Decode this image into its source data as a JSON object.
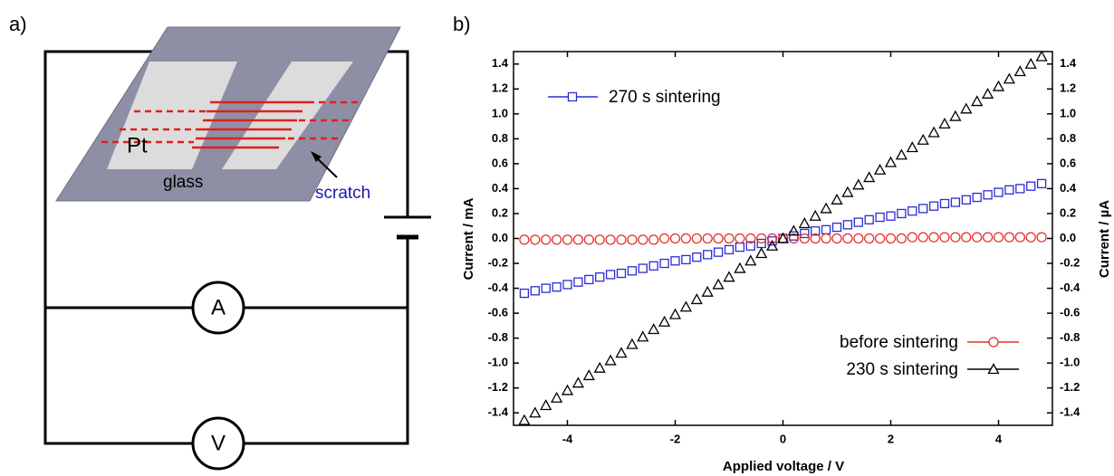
{
  "panel_a": {
    "label": "a)",
    "electrode": "Pt",
    "substrate": "glass",
    "defect": "scratch",
    "ammeter": "A",
    "voltmeter": "V"
  },
  "chart_data": {
    "type": "scatter",
    "panel_label": "b)",
    "x_label": "Applied voltage / V",
    "y_label": "Current / mA",
    "y2_label": "Current / µA",
    "xlim": [
      -5,
      5
    ],
    "xticks": [
      -4,
      -2,
      0,
      2,
      4
    ],
    "ylim": [
      -1.5,
      1.5
    ],
    "yticks": [
      -1.4,
      -1.2,
      {
        "value": -1,
        "label": "-1.0"
      },
      -0.8,
      -0.6,
      -0.4,
      -0.2,
      {
        "value": 0,
        "label": "0.0"
      },
      0.2,
      0.4,
      0.6,
      0.8,
      {
        "value": 1,
        "label": "1.0"
      },
      1.2,
      1.4
    ],
    "y2lim": [
      -1.5,
      1.5
    ],
    "y2ticks": [
      -1.4,
      -1.2,
      {
        "value": -1,
        "label": "-1.0"
      },
      -0.8,
      -0.6,
      -0.4,
      -0.2,
      {
        "value": 0,
        "label": "0.0"
      },
      0.2,
      0.4,
      0.6,
      0.8,
      {
        "value": 1,
        "label": "1.0"
      },
      1.2,
      1.4
    ],
    "x": [
      -4.8,
      -4.6,
      -4.4,
      -4.2,
      -4.0,
      -3.8,
      -3.6,
      -3.4,
      -3.2,
      -3.0,
      -2.8,
      -2.6,
      -2.4,
      -2.2,
      -2.0,
      -1.8,
      -1.6,
      -1.4,
      -1.2,
      -1.0,
      -0.8,
      -0.6,
      -0.4,
      -0.2,
      0,
      0.2,
      0.4,
      0.6,
      0.8,
      1.0,
      1.2,
      1.4,
      1.6,
      1.8,
      2.0,
      2.2,
      2.4,
      2.6,
      2.8,
      3.0,
      3.2,
      3.4,
      3.6,
      3.8,
      4.0,
      4.2,
      4.4,
      4.6,
      4.8
    ],
    "series": [
      {
        "name": "270 s sintering",
        "color": "#2b2bd4",
        "marker": "square",
        "legend": "top-left",
        "values": [
          -0.44,
          -0.42,
          -0.4,
          -0.39,
          -0.37,
          -0.35,
          -0.33,
          -0.31,
          -0.29,
          -0.28,
          -0.26,
          -0.24,
          -0.22,
          -0.2,
          -0.18,
          -0.17,
          -0.15,
          -0.13,
          -0.11,
          -0.09,
          -0.07,
          -0.06,
          -0.04,
          -0.02,
          0,
          0.02,
          0.04,
          0.06,
          0.07,
          0.09,
          0.11,
          0.13,
          0.15,
          0.17,
          0.18,
          0.2,
          0.22,
          0.24,
          0.26,
          0.28,
          0.29,
          0.31,
          0.33,
          0.35,
          0.37,
          0.39,
          0.4,
          0.42,
          0.44
        ]
      },
      {
        "name": "before sintering",
        "color": "#e2302b",
        "marker": "circle",
        "legend": "bottom-right",
        "axis": "y2",
        "values": [
          -0.01,
          -0.01,
          -0.01,
          -0.01,
          -0.01,
          -0.01,
          -0.01,
          -0.01,
          -0.01,
          -0.01,
          -0.01,
          -0.01,
          -0.01,
          0,
          0,
          0,
          0,
          0,
          0,
          0,
          0,
          0,
          0,
          0,
          0,
          0,
          0,
          0,
          0,
          0,
          0,
          0,
          0,
          0,
          0,
          0,
          0.01,
          0.01,
          0.01,
          0.01,
          0.01,
          0.01,
          0.01,
          0.01,
          0.01,
          0.01,
          0.01,
          0.01,
          0.01
        ]
      },
      {
        "name": "230 s sintering",
        "color": "#000000",
        "marker": "triangle",
        "legend": "bottom-right",
        "axis": "y2",
        "values": [
          -1.46,
          -1.4,
          -1.34,
          -1.28,
          -1.22,
          -1.16,
          -1.1,
          -1.04,
          -0.98,
          -0.92,
          -0.85,
          -0.79,
          -0.73,
          -0.67,
          -0.61,
          -0.55,
          -0.49,
          -0.43,
          -0.37,
          -0.31,
          -0.24,
          -0.18,
          -0.12,
          -0.06,
          0,
          0.06,
          0.12,
          0.18,
          0.24,
          0.31,
          0.37,
          0.43,
          0.49,
          0.55,
          0.61,
          0.67,
          0.73,
          0.79,
          0.85,
          0.92,
          0.98,
          1.04,
          1.1,
          1.16,
          1.22,
          1.28,
          1.34,
          1.4,
          1.46
        ]
      }
    ]
  }
}
